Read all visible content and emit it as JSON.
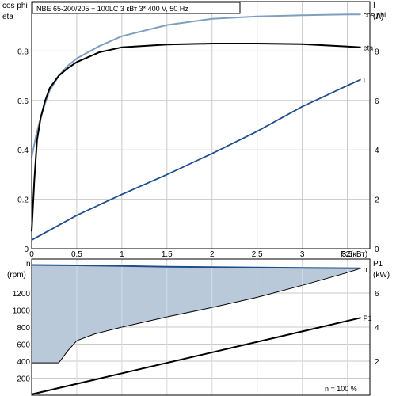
{
  "chart_data": [
    {
      "type": "line",
      "title": "NBE 65-200/205 + 100LC    3 кВт   3* 400 V, 50 Hz",
      "xlabel": "P2(кВт)",
      "ylabel_left": [
        "cos phi",
        "eta"
      ],
      "ylabel_right": [
        "I",
        "(A)"
      ],
      "xlim": [
        0,
        3.75
      ],
      "ylim_left": [
        0,
        1.0
      ],
      "ylim_right": [
        0,
        10
      ],
      "x_ticks": [
        "0",
        "0.5",
        "1",
        "1.5",
        "2",
        "2.5",
        "3",
        "3.5"
      ],
      "y_left_ticks": [
        "0",
        "0.2",
        "0.4",
        "0.6",
        "0.8"
      ],
      "y_right_ticks": [
        "0",
        "2",
        "4",
        "6",
        "8"
      ],
      "grid": true,
      "series": [
        {
          "name": "cos phi",
          "axis": "left",
          "color": "#7f9fbf",
          "x": [
            0,
            0.05,
            0.1,
            0.15,
            0.2,
            0.3,
            0.4,
            0.5,
            0.75,
            1.0,
            1.5,
            2.0,
            2.5,
            3.0,
            3.5,
            3.65
          ],
          "y": [
            0.37,
            0.46,
            0.53,
            0.59,
            0.64,
            0.7,
            0.74,
            0.77,
            0.82,
            0.86,
            0.905,
            0.93,
            0.94,
            0.945,
            0.948,
            0.948
          ]
        },
        {
          "name": "eta",
          "axis": "left",
          "color": "#000000",
          "x": [
            0,
            0.03,
            0.06,
            0.1,
            0.15,
            0.2,
            0.3,
            0.4,
            0.5,
            0.75,
            1.0,
            1.5,
            2.0,
            2.5,
            3.0,
            3.5,
            3.65
          ],
          "y": [
            0.07,
            0.28,
            0.44,
            0.53,
            0.6,
            0.65,
            0.7,
            0.73,
            0.755,
            0.795,
            0.815,
            0.826,
            0.83,
            0.83,
            0.828,
            0.818,
            0.815
          ]
        },
        {
          "name": "I",
          "axis": "right",
          "color": "#1f4e8c",
          "x": [
            0,
            0.5,
            1.0,
            1.5,
            2.0,
            2.5,
            3.0,
            3.5,
            3.65
          ],
          "y": [
            0.35,
            1.35,
            2.2,
            3.0,
            3.85,
            4.75,
            5.75,
            6.6,
            6.85
          ]
        }
      ]
    },
    {
      "type": "area",
      "ylabel_left": [
        "n",
        "(rpm)"
      ],
      "ylabel_right": [
        "P1",
        "(kW)"
      ],
      "xlim": [
        0,
        3.75
      ],
      "ylim_left": [
        0,
        1600
      ],
      "ylim_right": [
        0,
        8
      ],
      "y_left_ticks": [
        "200",
        "400",
        "600",
        "800",
        "1000",
        "1200"
      ],
      "y_right_ticks": [
        "2",
        "4",
        "6"
      ],
      "annotation": "n    = 100 %",
      "grid": true,
      "shaded_region": {
        "x": [
          0,
          0.3,
          0.4,
          0.5,
          0.7,
          1.0,
          1.5,
          2.0,
          2.5,
          3.0,
          3.5,
          3.65
        ],
        "y_lower": [
          380,
          380,
          520,
          640,
          720,
          800,
          920,
          1030,
          1150,
          1290,
          1440,
          1490
        ],
        "y_upper": [
          1530,
          1530,
          1528,
          1526,
          1522,
          1518,
          1510,
          1505,
          1500,
          1495,
          1492,
          1490
        ],
        "color": "#b9c9d9"
      },
      "series": [
        {
          "name": "n",
          "axis": "left",
          "color": "#1f4e8c",
          "x": [
            0,
            0.5,
            1.0,
            1.5,
            2.0,
            2.5,
            3.0,
            3.5,
            3.65
          ],
          "y": [
            1530,
            1526,
            1518,
            1510,
            1505,
            1500,
            1495,
            1492,
            1490
          ]
        },
        {
          "name": "P1",
          "axis": "right",
          "color": "#000000",
          "x": [
            0,
            3.65
          ],
          "y": [
            0.05,
            4.55
          ]
        }
      ]
    }
  ]
}
